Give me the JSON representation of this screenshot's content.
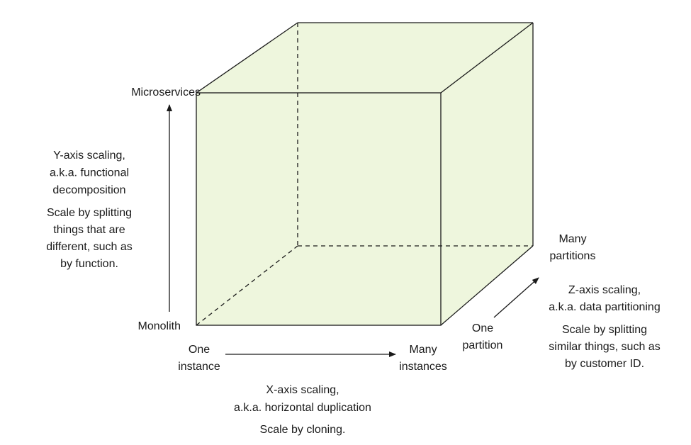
{
  "y_axis": {
    "end_label": "Microservices",
    "start_label": "Monolith",
    "title_lines": [
      "Y-axis scaling,",
      "a.k.a. functional",
      "decomposition"
    ],
    "description_lines": [
      "Scale by splitting",
      "things that are",
      "different, such as",
      "by function."
    ]
  },
  "x_axis": {
    "start_label": [
      "One",
      "instance"
    ],
    "end_label": [
      "Many",
      "instances"
    ],
    "title_lines": [
      "X-axis scaling,",
      "a.k.a. horizontal duplication"
    ],
    "description_lines": [
      "Scale by cloning."
    ]
  },
  "z_axis": {
    "start_label": [
      "One",
      "partition"
    ],
    "end_label": [
      "Many",
      "partitions"
    ],
    "title_lines": [
      "Z-axis scaling,",
      "a.k.a. data partitioning"
    ],
    "description_lines": [
      "Scale by splitting",
      "similar things, such as",
      "by customer ID."
    ]
  }
}
